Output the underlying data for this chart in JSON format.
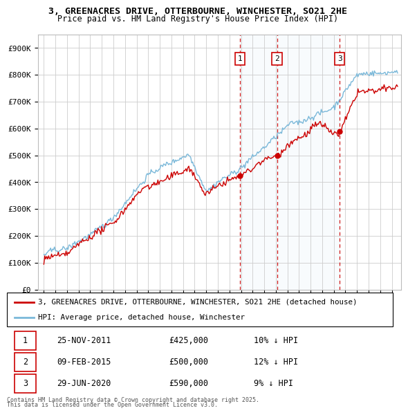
{
  "title_line1": "3, GREENACRES DRIVE, OTTERBOURNE, WINCHESTER, SO21 2HE",
  "title_line2": "Price paid vs. HM Land Registry's House Price Index (HPI)",
  "ylim": [
    0,
    950000
  ],
  "yticks": [
    0,
    100000,
    200000,
    300000,
    400000,
    500000,
    600000,
    700000,
    800000,
    900000
  ],
  "ytick_labels": [
    "£0",
    "£100K",
    "£200K",
    "£300K",
    "£400K",
    "£500K",
    "£600K",
    "£700K",
    "£800K",
    "£900K"
  ],
  "hpi_color": "#7ab8d9",
  "price_color": "#cc0000",
  "vline_color": "#cc0000",
  "shade_color": "#d6eaf8",
  "grid_color": "#cccccc",
  "background_color": "#ffffff",
  "legend_label_price": "3, GREENACRES DRIVE, OTTERBOURNE, WINCHESTER, SO21 2HE (detached house)",
  "legend_label_hpi": "HPI: Average price, detached house, Winchester",
  "transactions": [
    {
      "label": "1",
      "date_str": "25-NOV-2011",
      "price": 425000,
      "pct": "10% ↓ HPI",
      "x_year": 2011.9
    },
    {
      "label": "2",
      "date_str": "09-FEB-2015",
      "price": 500000,
      "pct": "12% ↓ HPI",
      "x_year": 2015.1
    },
    {
      "label": "3",
      "date_str": "29-JUN-2020",
      "price": 590000,
      "pct": "9% ↓ HPI",
      "x_year": 2020.5
    }
  ],
  "footnote_line1": "Contains HM Land Registry data © Crown copyright and database right 2025.",
  "footnote_line2": "This data is licensed under the Open Government Licence v3.0.",
  "xlim_start": 1994.5,
  "xlim_end": 2025.8,
  "fig_width": 6.0,
  "fig_height": 5.9,
  "dpi": 100
}
